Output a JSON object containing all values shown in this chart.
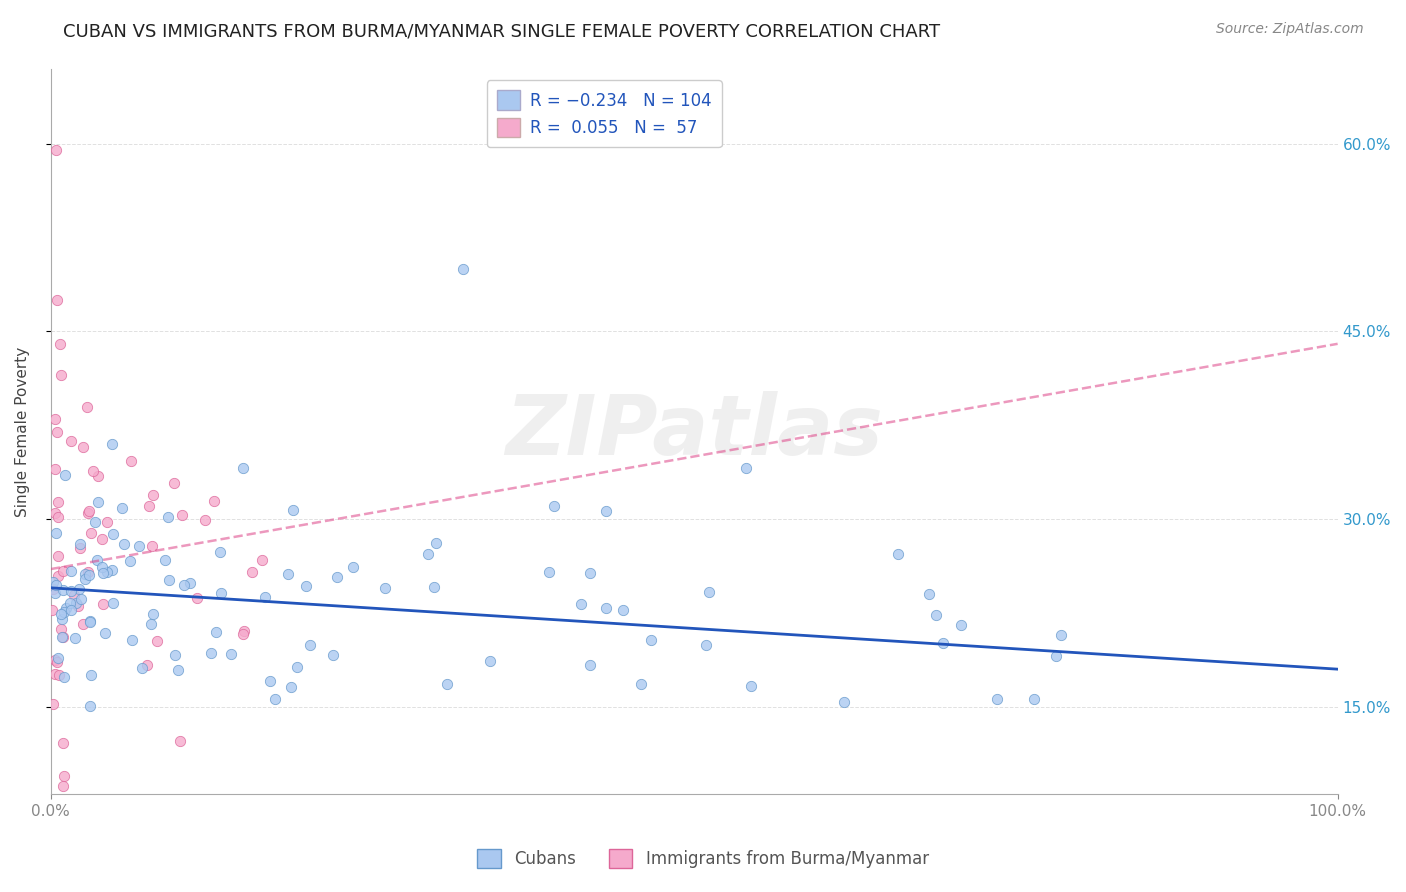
{
  "title": "CUBAN VS IMMIGRANTS FROM BURMA/MYANMAR SINGLE FEMALE POVERTY CORRELATION CHART",
  "source": "Source: ZipAtlas.com",
  "ylabel": "Single Female Poverty",
  "ytick_values": [
    0.15,
    0.3,
    0.45,
    0.6
  ],
  "xlim": [
    0.0,
    1.0
  ],
  "ylim": [
    0.08,
    0.66
  ],
  "cubans_scatter_color": "#aac8f0",
  "cubans_scatter_edge": "#6699cc",
  "burma_scatter_color": "#f5aacc",
  "burma_scatter_edge": "#dd6699",
  "cubans_line_color": "#2255bb",
  "burma_line_color": "#dd4488",
  "background_color": "#ffffff",
  "grid_color": "#cccccc",
  "watermark_text": "ZIPatlas",
  "watermark_alpha": 0.12,
  "title_fontsize": 13,
  "source_fontsize": 10,
  "axis_label_fontsize": 11,
  "tick_fontsize": 11,
  "legend_fontsize": 12,
  "scatter_dot_size": 55,
  "cubans_trend_intercept": 0.245,
  "cubans_trend_slope": -0.065,
  "burma_trend_intercept": 0.26,
  "burma_trend_slope": 0.18
}
